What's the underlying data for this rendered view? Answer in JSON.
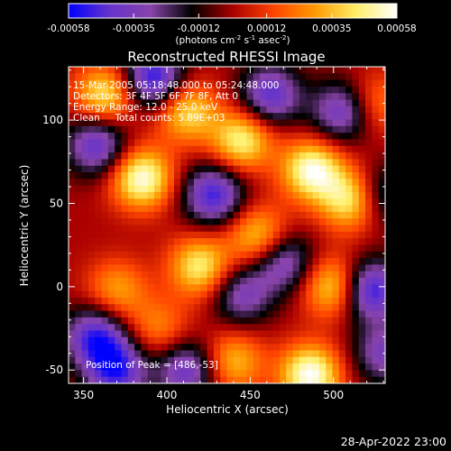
{
  "chart_data": {
    "type": "heatmap",
    "title": "Reconstructed RHESSI Image",
    "xlabel": "Heliocentric X (arcsec)",
    "ylabel": "Heliocentric Y (arcsec)",
    "xlim": [
      341,
      531
    ],
    "ylim": [
      -58,
      132
    ],
    "xticks": [
      350,
      400,
      450,
      500
    ],
    "yticks": [
      -50,
      0,
      50,
      100
    ],
    "colorbar": {
      "min": -0.00058,
      "max": 0.00058,
      "ticks": [
        -0.00058,
        -0.00035,
        -0.00012,
        0.00012,
        0.00035,
        0.00058
      ],
      "tick_labels": [
        "-0.00058",
        "-0.00035",
        "-0.00012",
        "0.00012",
        "0.00035",
        "0.00058"
      ],
      "unit_text": "(photons cm",
      "unit_exp1": "-2",
      "unit_mid1": " s",
      "unit_exp2": "-1",
      "unit_mid2": " asec",
      "unit_exp3": "-2",
      "unit_end": ")"
    },
    "colors": {
      "background": "#000000",
      "text": "#ffffff",
      "colormap": [
        "#0000ff",
        "#6633cc",
        "#8844aa",
        "#000000",
        "#aa0000",
        "#ff4400",
        "#ff9900",
        "#ffee66",
        "#ffffff"
      ]
    },
    "annotations": [
      "15-Mar-2005 05:18:48.000 to 05:24:48.000",
      "Detectors: 3F 4F 5F 6F 7F 8F, Att 0",
      "Energy Range: 12.0 - 25.0 keV",
      "Clean     Total counts: 5.89E+03"
    ],
    "peak_label": "Position of Peak = [486,-53]",
    "peak": [
      486,
      -53
    ],
    "timestamp": "28-Apr-2022 23:00",
    "grid": false,
    "bright_features": [
      {
        "x": 385,
        "y": 65,
        "value": 0.00056
      },
      {
        "x": 363,
        "y": 115,
        "value": 0.00045
      },
      {
        "x": 412,
        "y": 105,
        "value": 0.00042
      },
      {
        "x": 445,
        "y": 88,
        "value": 0.00048
      },
      {
        "x": 487,
        "y": 70,
        "value": 0.00055
      },
      {
        "x": 510,
        "y": 52,
        "value": 0.00047
      },
      {
        "x": 420,
        "y": 12,
        "value": 0.00046
      },
      {
        "x": 455,
        "y": 30,
        "value": 0.0004
      },
      {
        "x": 500,
        "y": 0,
        "value": 0.00044
      },
      {
        "x": 370,
        "y": -2,
        "value": 0.0003
      },
      {
        "x": 486,
        "y": -53,
        "value": 0.00058
      },
      {
        "x": 440,
        "y": -45,
        "value": 0.00035
      },
      {
        "x": 395,
        "y": -25,
        "value": 0.00025
      },
      {
        "x": 525,
        "y": 110,
        "value": 0.00025
      }
    ],
    "dark_features": [
      {
        "x": 358,
        "y": 85,
        "value": -0.00045
      },
      {
        "x": 392,
        "y": 125,
        "value": -0.00055
      },
      {
        "x": 428,
        "y": 55,
        "value": -0.0005
      },
      {
        "x": 462,
        "y": 115,
        "value": -0.00045
      },
      {
        "x": 505,
        "y": 105,
        "value": -0.00042
      },
      {
        "x": 470,
        "y": 15,
        "value": -0.0004
      },
      {
        "x": 522,
        "y": -2,
        "value": -0.00055
      },
      {
        "x": 357,
        "y": -30,
        "value": -0.00048
      },
      {
        "x": 445,
        "y": -5,
        "value": -0.00035
      },
      {
        "x": 412,
        "y": -50,
        "value": -0.00042
      },
      {
        "x": 370,
        "y": -50,
        "value": -0.0005
      },
      {
        "x": 530,
        "y": 55,
        "value": -0.0003
      },
      {
        "x": 530,
        "y": -40,
        "value": -0.00035
      }
    ]
  }
}
